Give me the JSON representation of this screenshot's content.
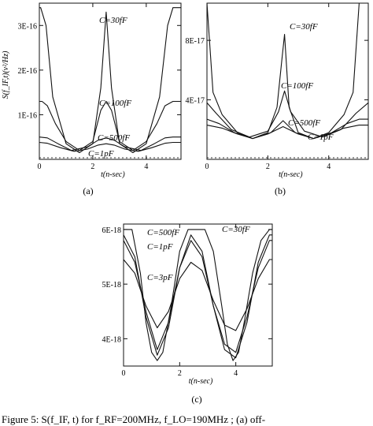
{
  "chart_data": [
    {
      "id": "a",
      "type": "line",
      "panel_label": "(a)",
      "ylabel": "S(f_IF,t)(v²/Hz)",
      "xlabel": "t(n-sec)",
      "xlim": [
        0,
        5.3
      ],
      "ylim": [
        0,
        3.5e-16
      ],
      "xticks": [
        0,
        2,
        4
      ],
      "xtick_labels": [
        "0",
        "2",
        "4"
      ],
      "yticks": [
        1e-16,
        2e-16,
        3e-16
      ],
      "ytick_labels": [
        "1E-16",
        "2E-16",
        "3E-16"
      ],
      "series": [
        {
          "name": "C=30fF",
          "x": [
            0,
            0.05,
            0.25,
            0.5,
            1.0,
            1.5,
            2.0,
            2.3,
            2.5,
            2.7,
            3.0,
            3.5,
            4.0,
            4.5,
            4.8,
            5.0,
            5.05,
            5.3
          ],
          "y": [
            3.4e-16,
            3.4e-16,
            3e-16,
            1.4e-16,
            3.5e-17,
            1.5e-17,
            3.5e-17,
            1.6e-16,
            3.3e-16,
            1.6e-16,
            3.5e-17,
            1.5e-17,
            3.5e-17,
            1.4e-16,
            3e-16,
            3.4e-16,
            3.4e-16,
            3.4e-16
          ]
        },
        {
          "name": "C=100fF",
          "x": [
            0,
            0.1,
            0.3,
            0.6,
            1.0,
            1.5,
            2.0,
            2.3,
            2.5,
            2.7,
            3.0,
            3.5,
            4.0,
            4.4,
            4.7,
            5.0,
            5.3
          ],
          "y": [
            1.3e-16,
            1.3e-16,
            1.2e-16,
            8e-17,
            4e-17,
            2e-17,
            4e-17,
            1.1e-16,
            1.3e-16,
            1.1e-16,
            4e-17,
            2e-17,
            4e-17,
            8e-17,
            1.2e-16,
            1.3e-16,
            1.3e-16
          ]
        },
        {
          "name": "C=500fF",
          "x": [
            0,
            0.3,
            0.7,
            1.2,
            1.8,
            2.2,
            2.5,
            2.8,
            3.2,
            3.8,
            4.3,
            4.7,
            5.0,
            5.3
          ],
          "y": [
            5e-17,
            4.8e-17,
            3.5e-17,
            2e-17,
            2.8e-17,
            4.3e-17,
            4.8e-17,
            4.3e-17,
            2.8e-17,
            2e-17,
            3.5e-17,
            4.8e-17,
            5e-17,
            5e-17
          ]
        },
        {
          "name": "C=1pF",
          "x": [
            0,
            0.3,
            0.8,
            1.3,
            1.8,
            2.2,
            2.5,
            2.8,
            3.2,
            3.7,
            4.2,
            4.7,
            5.0,
            5.3
          ],
          "y": [
            3.8e-17,
            3.6e-17,
            2.6e-17,
            1.8e-17,
            2.3e-17,
            3.2e-17,
            3.5e-17,
            3.2e-17,
            2.3e-17,
            1.8e-17,
            2.6e-17,
            3.6e-17,
            3.8e-17,
            3.8e-17
          ]
        }
      ],
      "baseline": {
        "style": "dotted",
        "y": 0
      }
    },
    {
      "id": "b",
      "type": "line",
      "panel_label": "(b)",
      "ylabel": "",
      "xlabel": "t(n-sec)",
      "xlim": [
        0,
        5.3
      ],
      "ylim": [
        0,
        1.05e-16
      ],
      "xticks": [
        0,
        2,
        4
      ],
      "xtick_labels": [
        "0",
        "2",
        "4"
      ],
      "yticks": [
        4e-17,
        8e-17
      ],
      "ytick_labels": [
        "4E-17",
        "8E-17"
      ],
      "series": [
        {
          "name": "C=30fF",
          "x": [
            0,
            0.2,
            0.5,
            1.0,
            1.5,
            2.0,
            2.3,
            2.45,
            2.55,
            2.7,
            3.0,
            3.5,
            4.0,
            4.5,
            4.8,
            5.0,
            5.3
          ],
          "y": [
            1.05e-16,
            4.5e-17,
            3e-17,
            1.8e-17,
            1.4e-17,
            1.8e-17,
            3.5e-17,
            6.5e-17,
            8.4e-17,
            3.5e-17,
            1.8e-17,
            1.4e-17,
            1.8e-17,
            3e-17,
            4.5e-17,
            1.05e-16,
            1.05e-16
          ]
        },
        {
          "name": "C=100fF",
          "x": [
            0,
            0.3,
            0.8,
            1.4,
            2.0,
            2.35,
            2.55,
            2.75,
            3.2,
            3.8,
            4.4,
            4.9,
            5.3
          ],
          "y": [
            3.8e-17,
            3.1e-17,
            2e-17,
            1.5e-17,
            1.9e-17,
            3.2e-17,
            4.6e-17,
            3.2e-17,
            1.9e-17,
            1.5e-17,
            2e-17,
            3.1e-17,
            3.8e-17
          ]
        },
        {
          "name": "C=500fF",
          "x": [
            0,
            0.4,
            0.9,
            1.5,
            2.1,
            2.5,
            2.9,
            3.5,
            4.1,
            4.6,
            5.0,
            5.3
          ],
          "y": [
            2.7e-17,
            2.4e-17,
            1.8e-17,
            1.4e-17,
            1.8e-17,
            2.6e-17,
            1.8e-17,
            1.4e-17,
            1.8e-17,
            2.4e-17,
            2.7e-17,
            2.7e-17
          ]
        },
        {
          "name": "C=1pF",
          "x": [
            0,
            0.5,
            1.0,
            1.5,
            2.0,
            2.5,
            3.0,
            3.5,
            4.0,
            4.5,
            5.0,
            5.3
          ],
          "y": [
            2.3e-17,
            2.1e-17,
            1.7e-17,
            1.4e-17,
            1.7e-17,
            2.2e-17,
            1.7e-17,
            1.4e-17,
            1.7e-17,
            2.1e-17,
            2.3e-17,
            2.3e-17
          ]
        }
      ],
      "baseline": {
        "style": "dotted",
        "y": 0
      }
    },
    {
      "id": "c",
      "type": "line",
      "panel_label": "(c)",
      "ylabel": "",
      "xlabel": "t(n-sec)",
      "xlim": [
        0,
        5.3
      ],
      "ylim": [
        3.5e-18,
        6.1e-18
      ],
      "xticks": [
        0,
        2,
        4
      ],
      "xtick_labels": [
        "0",
        "2",
        "4"
      ],
      "yticks": [
        4e-18,
        5e-18,
        6e-18
      ],
      "ytick_labels": [
        "4E-18",
        "5E-18",
        "6E-18"
      ],
      "series": [
        {
          "name": "C=30fF",
          "x": [
            0,
            0.3,
            0.6,
            0.8,
            1.0,
            1.2,
            1.4,
            1.7,
            2.0,
            2.3,
            2.9,
            3.2,
            3.5,
            3.7,
            3.9,
            4.1,
            4.3,
            4.6,
            4.9,
            5.2,
            5.3
          ],
          "y": [
            6e-18,
            6e-18,
            5.2e-18,
            4.3e-18,
            3.75e-18,
            3.6e-18,
            3.75e-18,
            4.6e-18,
            5.6e-18,
            6e-18,
            6e-18,
            5.6e-18,
            4.6e-18,
            3.9e-18,
            3.6e-18,
            3.75e-18,
            4.3e-18,
            5.2e-18,
            5.8e-18,
            6e-18,
            6e-18
          ]
        },
        {
          "name": "C=500fF",
          "x": [
            0,
            0.4,
            0.8,
            1.2,
            1.6,
            2.0,
            2.4,
            2.8,
            3.2,
            3.6,
            4.0,
            4.4,
            4.8,
            5.2,
            5.3
          ],
          "y": [
            5.9e-18,
            5.5e-18,
            4.4e-18,
            3.7e-18,
            4.2e-18,
            5.3e-18,
            5.9e-18,
            5.6e-18,
            4.6e-18,
            3.8e-18,
            3.65e-18,
            4.3e-18,
            5.4e-18,
            5.9e-18,
            5.9e-18
          ]
        },
        {
          "name": "C=1pF",
          "x": [
            0,
            0.4,
            0.8,
            1.2,
            1.6,
            2.0,
            2.4,
            2.8,
            3.2,
            3.6,
            4.0,
            4.4,
            4.8,
            5.2,
            5.3
          ],
          "y": [
            5.8e-18,
            5.4e-18,
            4.5e-18,
            3.8e-18,
            4.3e-18,
            5.3e-18,
            5.8e-18,
            5.5e-18,
            4.6e-18,
            3.9e-18,
            3.75e-18,
            4.4e-18,
            5.3e-18,
            5.8e-18,
            5.8e-18
          ]
        },
        {
          "name": "C=3pF",
          "x": [
            0,
            0.4,
            0.8,
            1.2,
            1.6,
            2.0,
            2.4,
            2.8,
            3.2,
            3.6,
            4.0,
            4.4,
            4.8,
            5.2,
            5.3
          ],
          "y": [
            5.45e-18,
            5.2e-18,
            4.6e-18,
            4.2e-18,
            4.5e-18,
            5.1e-18,
            5.4e-18,
            5.25e-18,
            4.7e-18,
            4.25e-18,
            4.15e-18,
            4.55e-18,
            5.1e-18,
            5.45e-18,
            5.45e-18
          ]
        }
      ]
    }
  ],
  "caption": "Figure 5:  S(f_IF, t) for  f_RF=200MHz,  f_LO=190MHz ; (a) off-"
}
